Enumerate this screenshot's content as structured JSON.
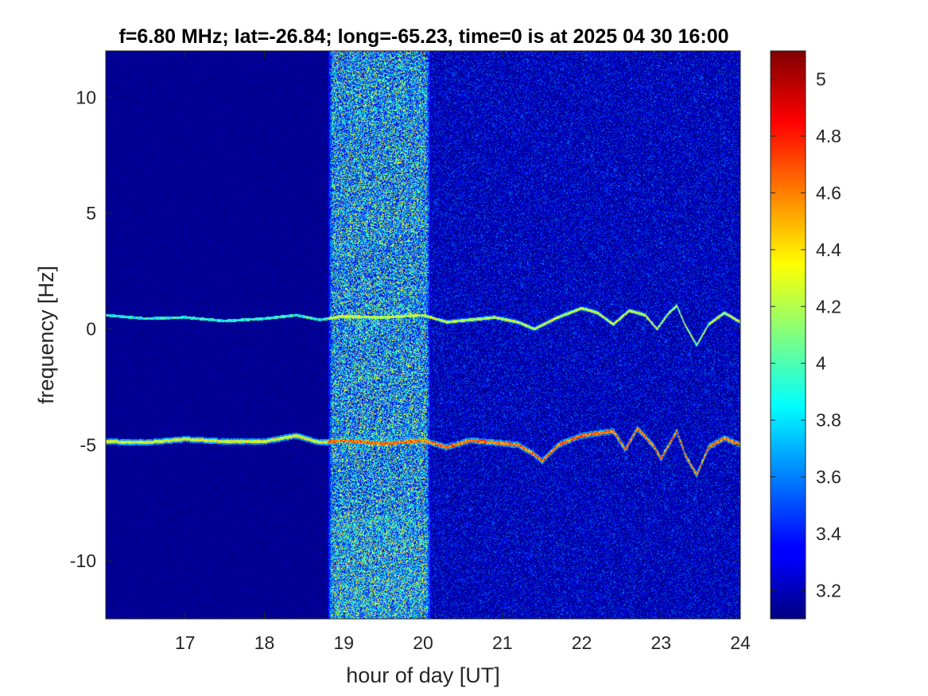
{
  "chart_data": {
    "type": "heatmap",
    "title": "f=6.80 MHz;  lat=-26.84; long=-65.23, time=0 is at 2025 04 30 16:00",
    "xlabel": "hour of day [UT]",
    "ylabel": "frequency [Hz]",
    "xlim": [
      16,
      24
    ],
    "ylim": [
      -12.5,
      12
    ],
    "xticks": [
      17,
      18,
      19,
      20,
      21,
      22,
      23,
      24
    ],
    "xtick_labels": [
      "17",
      "18",
      "19",
      "20",
      "21",
      "22",
      "23",
      "24"
    ],
    "yticks": [
      10,
      5,
      0,
      -5,
      -10
    ],
    "ytick_labels": [
      "10",
      "5",
      "0",
      "-5",
      "-10"
    ],
    "colormap": "jet",
    "clim": [
      3.1,
      5.1
    ],
    "colorbar_ticks": [
      5,
      4.8,
      4.6,
      4.4,
      4.2,
      4,
      3.8,
      3.6,
      3.4,
      3.2
    ],
    "colorbar_tick_labels": [
      "5",
      "4.8",
      "4.6",
      "4.4",
      "4.2",
      "4",
      "3.8",
      "3.6",
      "3.4",
      "3.2"
    ],
    "grid": false,
    "features": {
      "broadband_noise_hours": [
        18.8,
        20.1
      ],
      "background_noise_after_hour": 20.1,
      "upper_trace": {
        "x": [
          16.0,
          16.5,
          17.0,
          17.5,
          18.0,
          18.4,
          18.7,
          19.0,
          19.5,
          20.0,
          20.3,
          20.6,
          20.9,
          21.2,
          21.4,
          21.7,
          22.0,
          22.2,
          22.4,
          22.6,
          22.8,
          22.95,
          23.1,
          23.2,
          23.3,
          23.45,
          23.6,
          23.8,
          24.0
        ],
        "y": [
          0.6,
          0.45,
          0.5,
          0.35,
          0.45,
          0.6,
          0.4,
          0.55,
          0.5,
          0.6,
          0.3,
          0.4,
          0.5,
          0.3,
          0.0,
          0.5,
          0.9,
          0.7,
          0.2,
          0.8,
          0.6,
          0.0,
          0.7,
          1.0,
          0.2,
          -0.7,
          0.2,
          0.7,
          0.3
        ]
      },
      "lower_trace": {
        "x": [
          16.0,
          16.5,
          17.0,
          17.5,
          18.0,
          18.4,
          18.7,
          19.0,
          19.5,
          20.0,
          20.3,
          20.6,
          20.9,
          21.2,
          21.4,
          21.5,
          21.7,
          22.0,
          22.2,
          22.4,
          22.55,
          22.7,
          22.9,
          23.0,
          23.2,
          23.3,
          23.45,
          23.6,
          23.8,
          24.0
        ],
        "y": [
          -4.85,
          -4.9,
          -4.75,
          -4.85,
          -4.85,
          -4.6,
          -4.9,
          -4.8,
          -4.95,
          -4.8,
          -5.1,
          -4.8,
          -4.9,
          -5.0,
          -5.4,
          -5.7,
          -5.0,
          -4.6,
          -4.5,
          -4.4,
          -5.2,
          -4.3,
          -5.0,
          -5.6,
          -4.4,
          -5.4,
          -6.3,
          -5.1,
          -4.7,
          -5.0
        ]
      }
    }
  }
}
